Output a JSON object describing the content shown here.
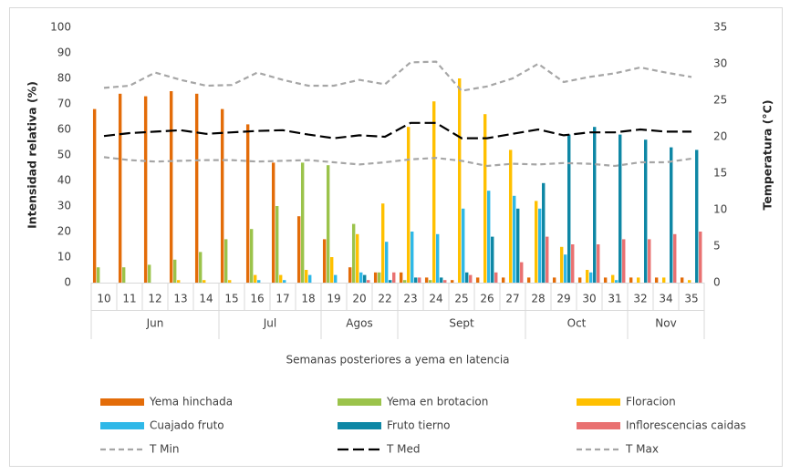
{
  "chart_data": {
    "type": "bar",
    "y_label": "Intensidad relativa (%)",
    "y2_label": "Temperatura (°C)",
    "x_label": "Semanas posteriores a yema en latencia",
    "categories": [
      "10",
      "11",
      "12",
      "13",
      "14",
      "15",
      "16",
      "17",
      "18",
      "19",
      "20",
      "22",
      "23",
      "24",
      "25",
      "26",
      "27",
      "28",
      "29",
      "30",
      "31",
      "32",
      "34",
      "35"
    ],
    "x_groups": [
      {
        "label": "Jun",
        "size": 5
      },
      {
        "label": "Jul",
        "size": 4
      },
      {
        "label": "Agos",
        "size": 3
      },
      {
        "label": "Sept",
        "size": 5
      },
      {
        "label": "Oct",
        "size": 4
      },
      {
        "label": "Nov",
        "size": 3
      }
    ],
    "ylim": [
      0,
      100
    ],
    "yticks": [
      0,
      10,
      20,
      30,
      40,
      50,
      60,
      70,
      80,
      90,
      100
    ],
    "y2lim": [
      0,
      35
    ],
    "y2ticks": [
      0,
      5,
      10,
      15,
      20,
      25,
      30,
      35
    ],
    "series": [
      {
        "name": "Yema hinchada",
        "type": "bar",
        "color": "#e36c09",
        "values": [
          68,
          74,
          73,
          75,
          74,
          68,
          62,
          47,
          26,
          17,
          6,
          4,
          4,
          2,
          1,
          2,
          2,
          2,
          2,
          2,
          2,
          2,
          2,
          2
        ]
      },
      {
        "name": "Yema en brotacion",
        "type": "bar",
        "color": "#9bc34b",
        "values": [
          6,
          6,
          7,
          9,
          12,
          17,
          21,
          30,
          47,
          46,
          23,
          4,
          1,
          1,
          0,
          0,
          0,
          0,
          0,
          0,
          0,
          0,
          0,
          0
        ]
      },
      {
        "name": "Floracion",
        "type": "bar",
        "color": "#ffc000",
        "values": [
          0,
          0,
          0,
          1,
          1,
          1,
          3,
          3,
          5,
          10,
          19,
          31,
          61,
          71,
          80,
          66,
          52,
          32,
          14,
          5,
          3,
          2,
          2,
          1
        ]
      },
      {
        "name": "Cuajado fruto",
        "type": "bar",
        "color": "#2fb8e8",
        "values": [
          0,
          0,
          0,
          0,
          0,
          0,
          1,
          1,
          3,
          3,
          4,
          16,
          20,
          19,
          29,
          36,
          34,
          29,
          11,
          4,
          1,
          0,
          0,
          0
        ]
      },
      {
        "name": "Fruto tierno",
        "type": "bar",
        "color": "#0e87a5",
        "values": [
          0,
          0,
          0,
          0,
          0,
          0,
          0,
          0,
          0,
          0,
          3,
          1,
          2,
          2,
          4,
          18,
          29,
          39,
          58,
          61,
          58,
          56,
          53,
          52
        ]
      },
      {
        "name": "Inflorescencias caidas",
        "type": "bar",
        "color": "#e97171",
        "values": [
          0,
          0,
          0,
          0,
          0,
          0,
          0,
          0,
          0,
          0,
          1,
          4,
          2,
          1,
          3,
          4,
          8,
          18,
          15,
          15,
          17,
          17,
          19,
          20
        ]
      },
      {
        "name": "T Min",
        "type": "line",
        "axis": "y2",
        "dash": "dashed",
        "color": "#a6a6a6",
        "values": [
          17.2,
          16.8,
          16.6,
          16.7,
          16.8,
          16.8,
          16.6,
          16.7,
          16.8,
          16.5,
          16.2,
          16.5,
          16.9,
          17.1,
          16.7,
          16.0,
          16.3,
          16.2,
          16.4,
          16.3,
          16.0,
          16.5,
          16.5,
          17.0
        ]
      },
      {
        "name": "T Med",
        "type": "line",
        "axis": "y2",
        "dash": "long-dash",
        "color": "#000000",
        "values": [
          20.1,
          20.5,
          20.7,
          20.9,
          20.4,
          20.6,
          20.8,
          20.9,
          20.3,
          19.8,
          20.2,
          20.0,
          21.9,
          21.9,
          19.8,
          19.8,
          20.4,
          21.0,
          20.2,
          20.6,
          20.6,
          21.0,
          20.7,
          20.7
        ]
      },
      {
        "name": "T Max",
        "type": "line",
        "axis": "y2",
        "dash": "dashed",
        "color": "#a6a6a6",
        "values": [
          26.7,
          27.0,
          28.8,
          27.8,
          27.0,
          27.1,
          28.8,
          27.8,
          27.0,
          27.0,
          27.8,
          27.2,
          30.2,
          30.3,
          26.3,
          26.9,
          28.0,
          30.0,
          27.5,
          28.2,
          28.7,
          29.5,
          28.8,
          28.2
        ]
      }
    ]
  }
}
